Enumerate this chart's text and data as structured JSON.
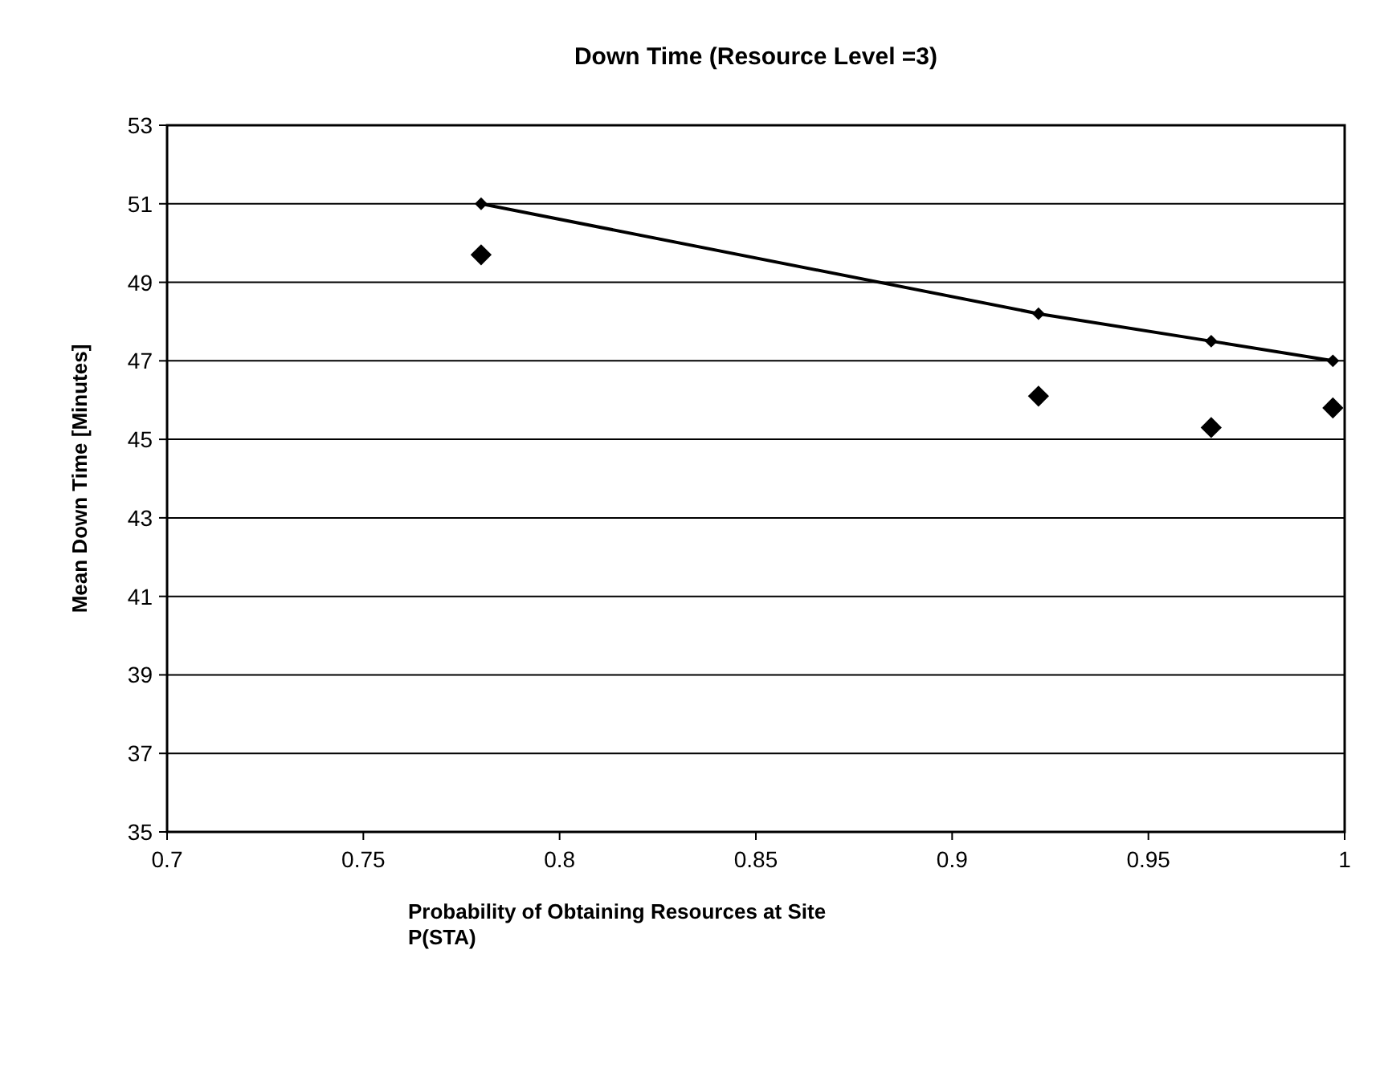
{
  "chart_data": {
    "type": "line",
    "title": "Down Time (Resource Level =3)",
    "xlabel": "Probability of Obtaining Resources at Site\nP(STA)",
    "ylabel": "Mean Down Time [Minutes]",
    "x": [
      0.78,
      0.922,
      0.966,
      0.997
    ],
    "series": [
      {
        "color": "#000000",
        "values": [
          51,
          48.2,
          47.5,
          47.0
        ],
        "marker": "diamond"
      },
      {
        "type": "scatter",
        "color": "#000000",
        "values": [
          49.7,
          46.1,
          45.3,
          45.8
        ],
        "marker": "diamond"
      }
    ],
    "xlim": [
      0.7,
      1
    ],
    "xticks": [
      0.7,
      0.75,
      0.8,
      0.85,
      0.9,
      0.95,
      1
    ],
    "ylim": [
      35,
      53
    ],
    "yticks": [
      35,
      37,
      39,
      41,
      43,
      45,
      47,
      49,
      51,
      53
    ],
    "grid": "y",
    "line_style": "solid"
  }
}
